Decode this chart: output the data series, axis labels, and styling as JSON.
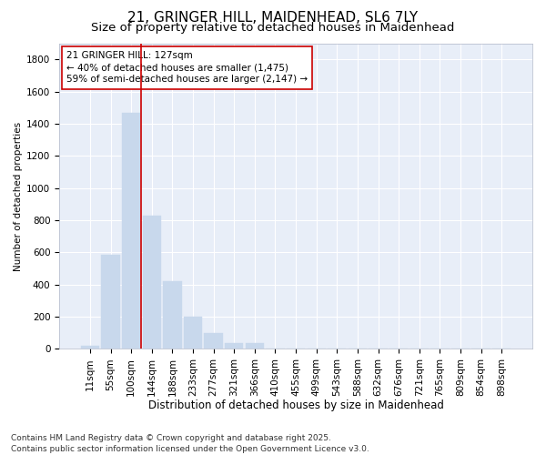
{
  "title": "21, GRINGER HILL, MAIDENHEAD, SL6 7LY",
  "subtitle": "Size of property relative to detached houses in Maidenhead",
  "xlabel": "Distribution of detached houses by size in Maidenhead",
  "ylabel": "Number of detached properties",
  "categories": [
    "11sqm",
    "55sqm",
    "100sqm",
    "144sqm",
    "188sqm",
    "233sqm",
    "277sqm",
    "321sqm",
    "366sqm",
    "410sqm",
    "455sqm",
    "499sqm",
    "543sqm",
    "588sqm",
    "632sqm",
    "676sqm",
    "721sqm",
    "765sqm",
    "809sqm",
    "854sqm",
    "898sqm"
  ],
  "values": [
    20,
    585,
    1465,
    830,
    420,
    200,
    100,
    35,
    35,
    0,
    0,
    0,
    0,
    0,
    0,
    0,
    0,
    0,
    0,
    0,
    0
  ],
  "bar_color": "#c8d8ec",
  "bar_edgecolor": "#c8d8ec",
  "vline_x": 2.5,
  "vline_color": "#cc0000",
  "annotation_text": "21 GRINGER HILL: 127sqm\n← 40% of detached houses are smaller (1,475)\n59% of semi-detached houses are larger (2,147) →",
  "annotation_box_facecolor": "#ffffff",
  "annotation_box_edgecolor": "#cc0000",
  "ylim": [
    0,
    1900
  ],
  "yticks": [
    0,
    200,
    400,
    600,
    800,
    1000,
    1200,
    1400,
    1600,
    1800
  ],
  "fig_background": "#ffffff",
  "plot_background": "#e8eef8",
  "grid_color": "#ffffff",
  "footer_text": "Contains HM Land Registry data © Crown copyright and database right 2025.\nContains public sector information licensed under the Open Government Licence v3.0.",
  "title_fontsize": 11,
  "subtitle_fontsize": 9.5,
  "xlabel_fontsize": 8.5,
  "ylabel_fontsize": 7.5,
  "tick_fontsize": 7.5,
  "annotation_fontsize": 7.5,
  "footer_fontsize": 6.5
}
